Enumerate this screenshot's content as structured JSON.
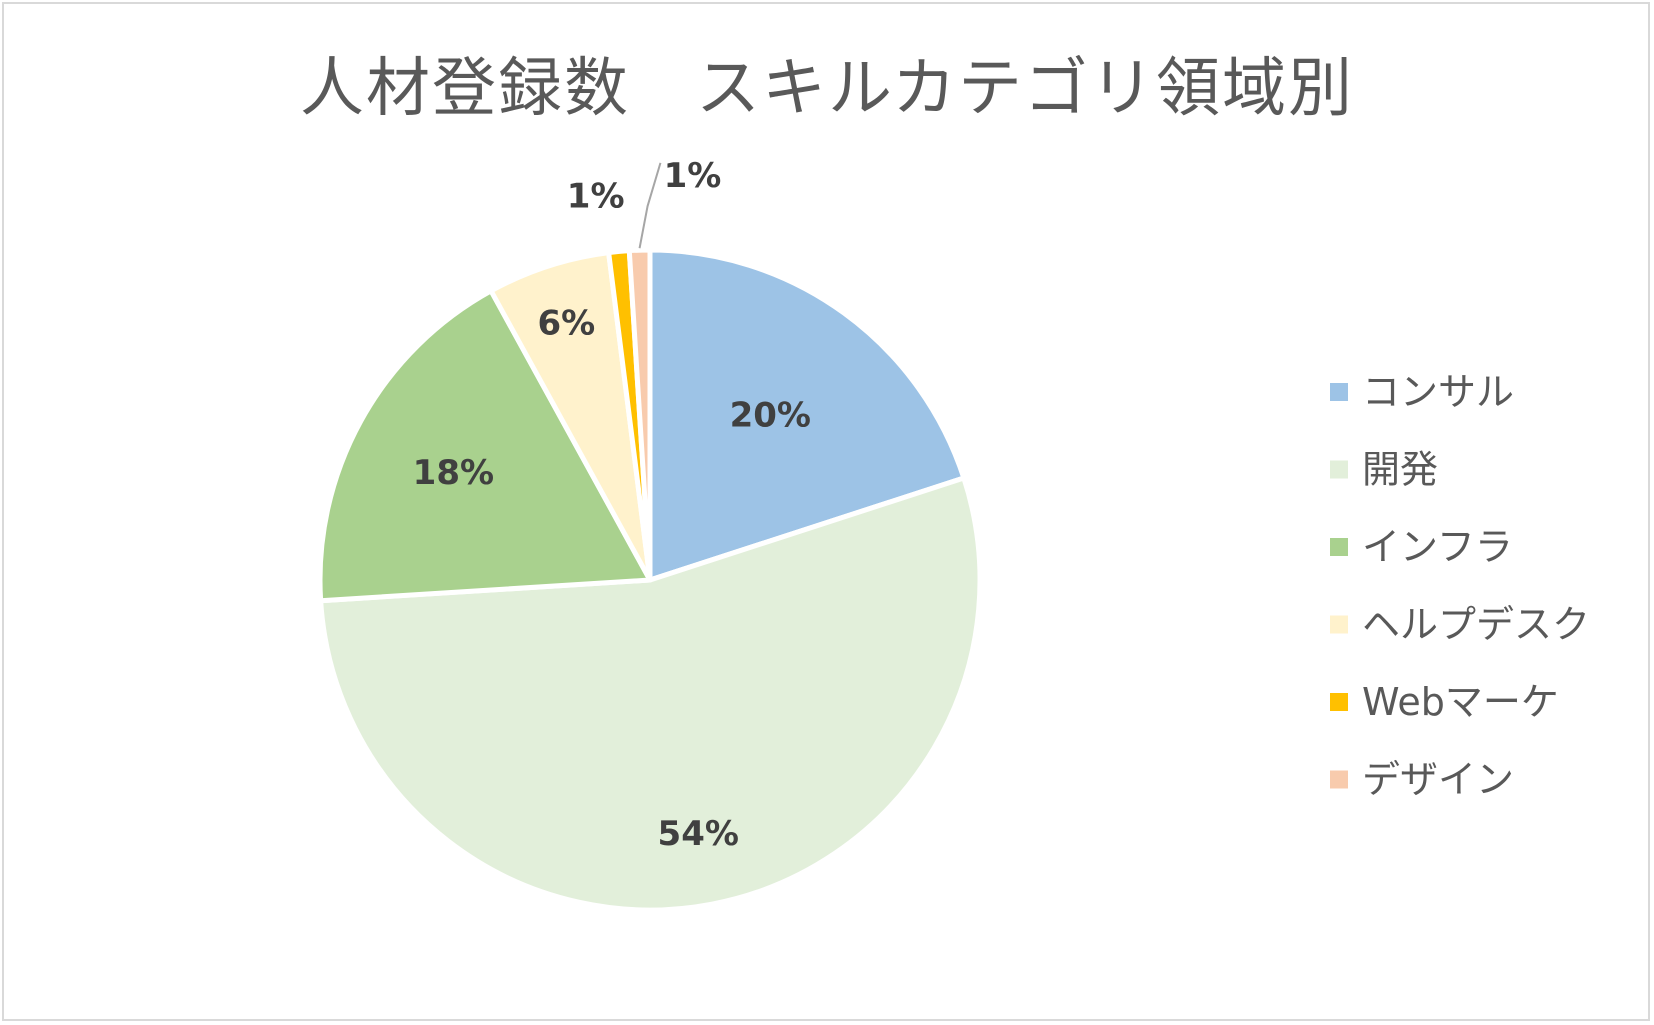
{
  "chart_data": {
    "type": "pie",
    "title": "人材登録数　スキルカテゴリ領域別",
    "slices": [
      {
        "label": "コンサル",
        "value": 20,
        "display": "20%",
        "color": "#9dc3e6"
      },
      {
        "label": "開発",
        "value": 54,
        "display": "54%",
        "color": "#e2efda"
      },
      {
        "label": "インフラ",
        "value": 18,
        "display": "18%",
        "color": "#a9d18e"
      },
      {
        "label": "ヘルプデスク",
        "value": 6,
        "display": "6%",
        "color": "#fff2cc"
      },
      {
        "label": "Webマーケ",
        "value": 1,
        "display": "1%",
        "color": "#ffc000"
      },
      {
        "label": "デザイン",
        "value": 1,
        "display": "1%",
        "color": "#f8cbad"
      }
    ],
    "legend_position": "right"
  }
}
